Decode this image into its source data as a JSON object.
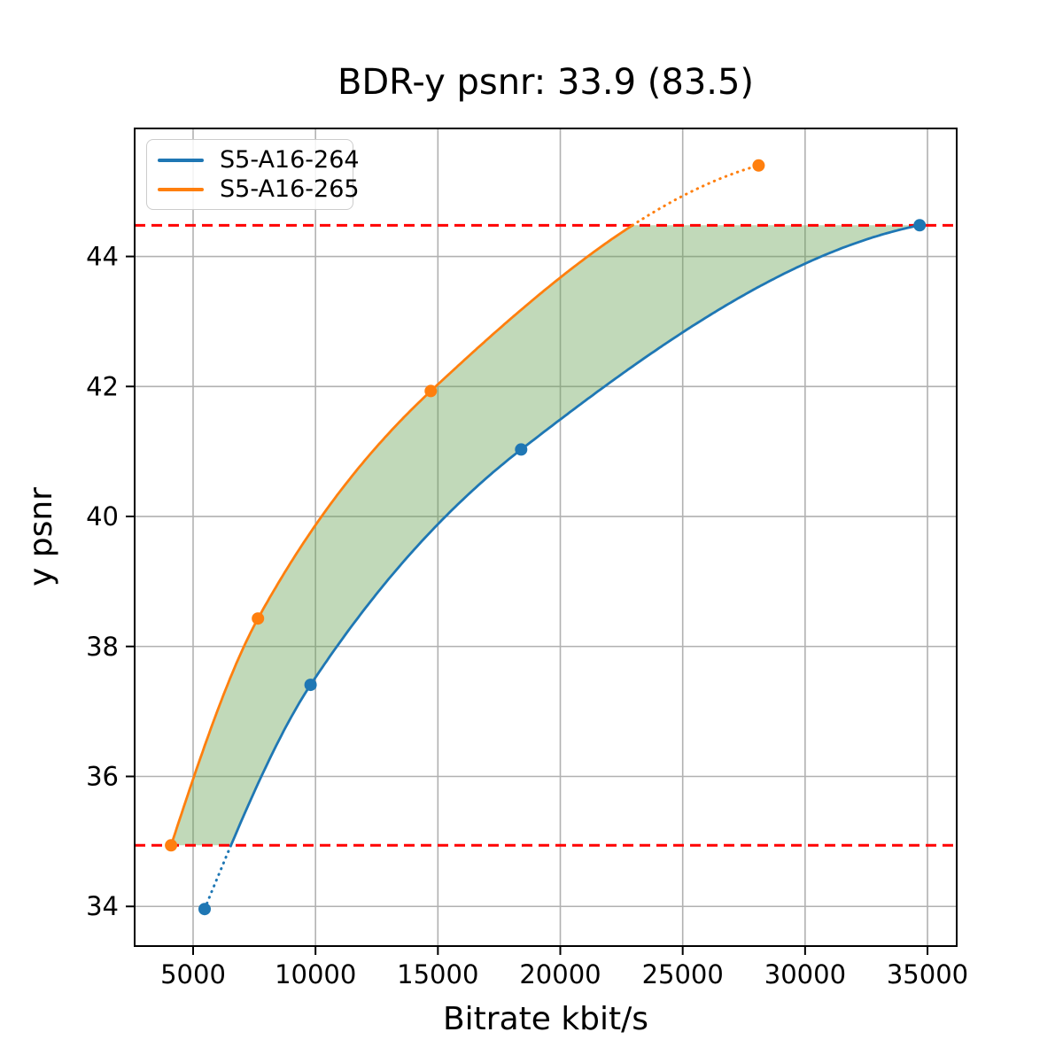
{
  "chart_data": {
    "type": "line",
    "title": "BDR-y psnr: 33.9 (83.5)",
    "xlabel": "Bitrate kbit/s",
    "ylabel": "y psnr",
    "xlim": [
      2612,
      36193
    ],
    "ylim": [
      33.39,
      45.97
    ],
    "grid": true,
    "legend_position": "upper left",
    "xticks": [
      5000,
      10000,
      15000,
      20000,
      25000,
      30000,
      35000
    ],
    "xtick_labels": [
      "5000",
      "10000",
      "15000",
      "20000",
      "25000",
      "30000",
      "35000"
    ],
    "yticks": [
      34,
      36,
      38,
      40,
      42,
      44
    ],
    "ytick_labels": [
      "34",
      "36",
      "38",
      "40",
      "42",
      "44"
    ],
    "series": [
      {
        "name": "S5-A16-264",
        "color": "#1f77b4",
        "x": [
          5470,
          9800,
          18400,
          34680
        ],
        "y": [
          33.96,
          37.41,
          41.03,
          44.48
        ]
      },
      {
        "name": "S5-A16-265",
        "color": "#ff7f0e",
        "x": [
          4100,
          7650,
          14710,
          28100
        ],
        "y": [
          34.94,
          38.43,
          41.93,
          45.4
        ]
      }
    ],
    "hlines": {
      "values": [
        34.94,
        44.48
      ],
      "color": "#ff0000",
      "style": "dashed",
      "meaning": "BD integration bounds: max of curve minima, min of curve maxima"
    },
    "fill_between": {
      "color": "rgba(100,160,80,0.40)",
      "description": "shaded BD area between the two rate-distortion curves clipped to the red bounds"
    },
    "colors": {
      "grid": "#b1b1b1",
      "spine": "#000000",
      "background": "#ffffff"
    },
    "bd_values": {
      "bd_psnr": "33.9",
      "bd_rate_pct": "83.5"
    }
  }
}
